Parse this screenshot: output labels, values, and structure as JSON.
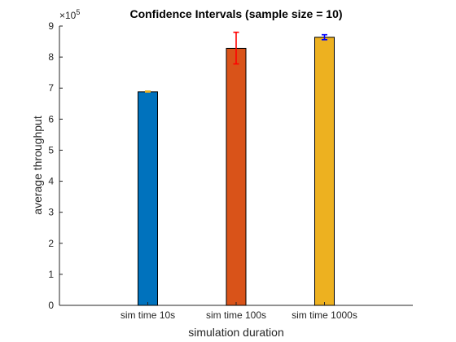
{
  "chart_data": {
    "type": "bar",
    "title": "Confidence Intervals (sample size = 10)",
    "xlabel": "simulation duration",
    "ylabel": "average throughput",
    "y_exponent_base": "×10",
    "y_exponent_power": "5",
    "categories": [
      "sim time 10s",
      "sim time 100s",
      "sim time 1000s"
    ],
    "values": [
      6.88,
      8.28,
      8.64
    ],
    "errors": [
      {
        "low": 6.875,
        "high": 6.905
      },
      {
        "low": 7.78,
        "high": 8.8
      },
      {
        "low": 8.56,
        "high": 8.72
      }
    ],
    "bar_colors": [
      "#0072BD",
      "#D95319",
      "#EDB120"
    ],
    "error_colors": [
      "#EDB120",
      "#FF0000",
      "#0000FF"
    ],
    "ylim": [
      0,
      9
    ],
    "yticks": [
      0,
      1,
      2,
      3,
      4,
      5,
      6,
      7,
      8,
      9
    ],
    "grid": false,
    "legend": "none"
  }
}
